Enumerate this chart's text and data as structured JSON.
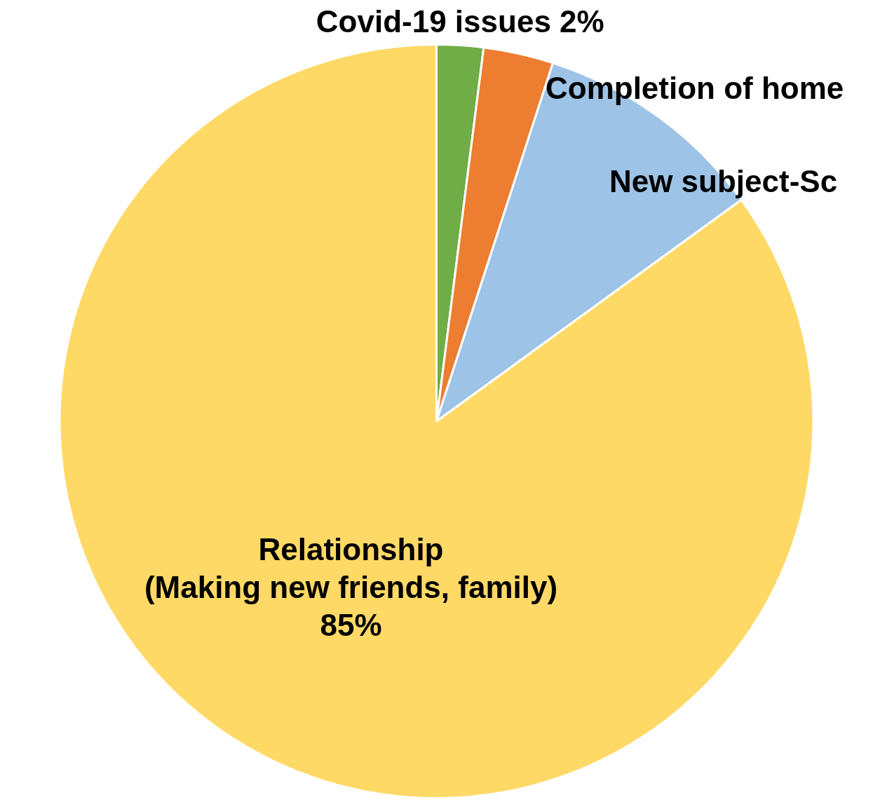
{
  "chart_data": {
    "type": "pie",
    "categories": [
      "Covid-19 issues",
      "Completion of home",
      "New subject-Sc",
      "Relationship\n(Making new friends, family)"
    ],
    "values": [
      2,
      3,
      10,
      85
    ],
    "colors": [
      "#70ad47",
      "#ed7d31",
      "#9dc3e6",
      "#ffd966"
    ],
    "value_labels": [
      "2%",
      null,
      null,
      "85%"
    ],
    "legend": false
  }
}
